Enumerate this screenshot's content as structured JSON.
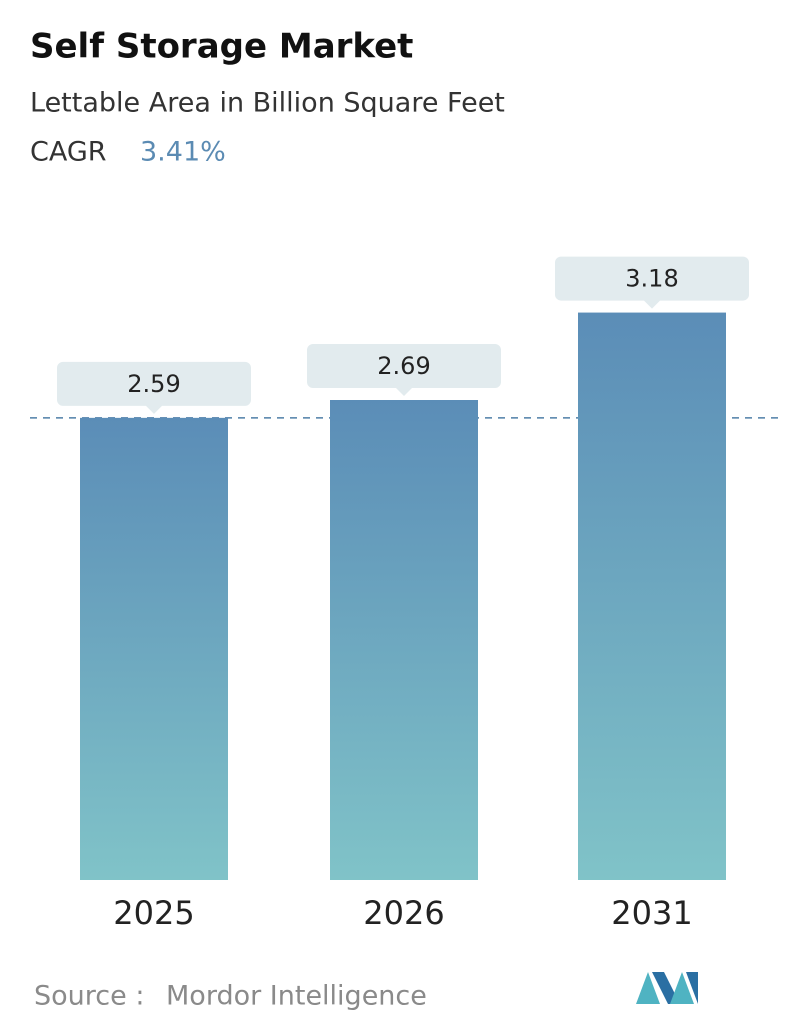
{
  "chart_data": {
    "type": "bar",
    "title": "Self Storage Market",
    "subtitle": "Lettable Area in Billion Square Feet",
    "cagr_label": "CAGR",
    "cagr_value": "3.41%",
    "categories": [
      "2025",
      "2026",
      "2031"
    ],
    "values": [
      2.59,
      2.69,
      3.18
    ],
    "ylim": [
      0,
      3.2
    ],
    "color_top": "#5b8db7",
    "color_bottom": "#80c3c8",
    "source_label": "Source :",
    "source": "Mordor Intelligence"
  }
}
